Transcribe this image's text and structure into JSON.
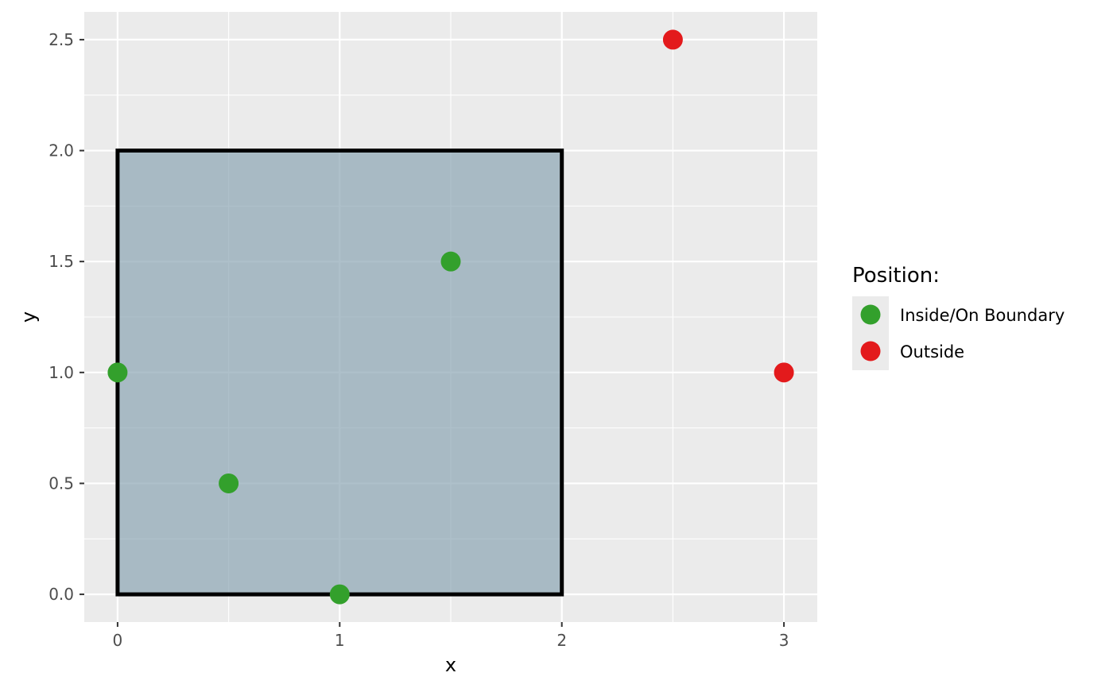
{
  "chart_data": {
    "type": "scatter",
    "title": "",
    "xlabel": "x",
    "ylabel": "y",
    "xlim": [
      -0.15,
      3.15
    ],
    "ylim": [
      -0.125,
      2.625
    ],
    "x_ticks": [
      0,
      1,
      2,
      3
    ],
    "x_tick_labels": [
      "0",
      "1",
      "2",
      "3"
    ],
    "y_ticks": [
      0,
      0.5,
      1,
      1.5,
      2,
      2.5
    ],
    "y_tick_labels": [
      "0.0",
      "0.5",
      "1.0",
      "1.5",
      "2.0",
      "2.5"
    ],
    "grid": true,
    "polygon": {
      "points": [
        [
          0,
          0
        ],
        [
          2,
          0
        ],
        [
          2,
          2
        ],
        [
          0,
          2
        ]
      ],
      "fill": "#8ca5b4",
      "stroke": "#000000"
    },
    "series": [
      {
        "name": "Inside/On Boundary",
        "color": "#33a02c",
        "points": [
          [
            0,
            1
          ],
          [
            0.5,
            0.5
          ],
          [
            1,
            0
          ],
          [
            1.5,
            1.5
          ]
        ]
      },
      {
        "name": "Outside",
        "color": "#e31a1c",
        "points": [
          [
            2.5,
            2.5
          ],
          [
            3,
            1
          ]
        ]
      }
    ],
    "legend": {
      "title": "Position:",
      "placement": "right"
    }
  }
}
